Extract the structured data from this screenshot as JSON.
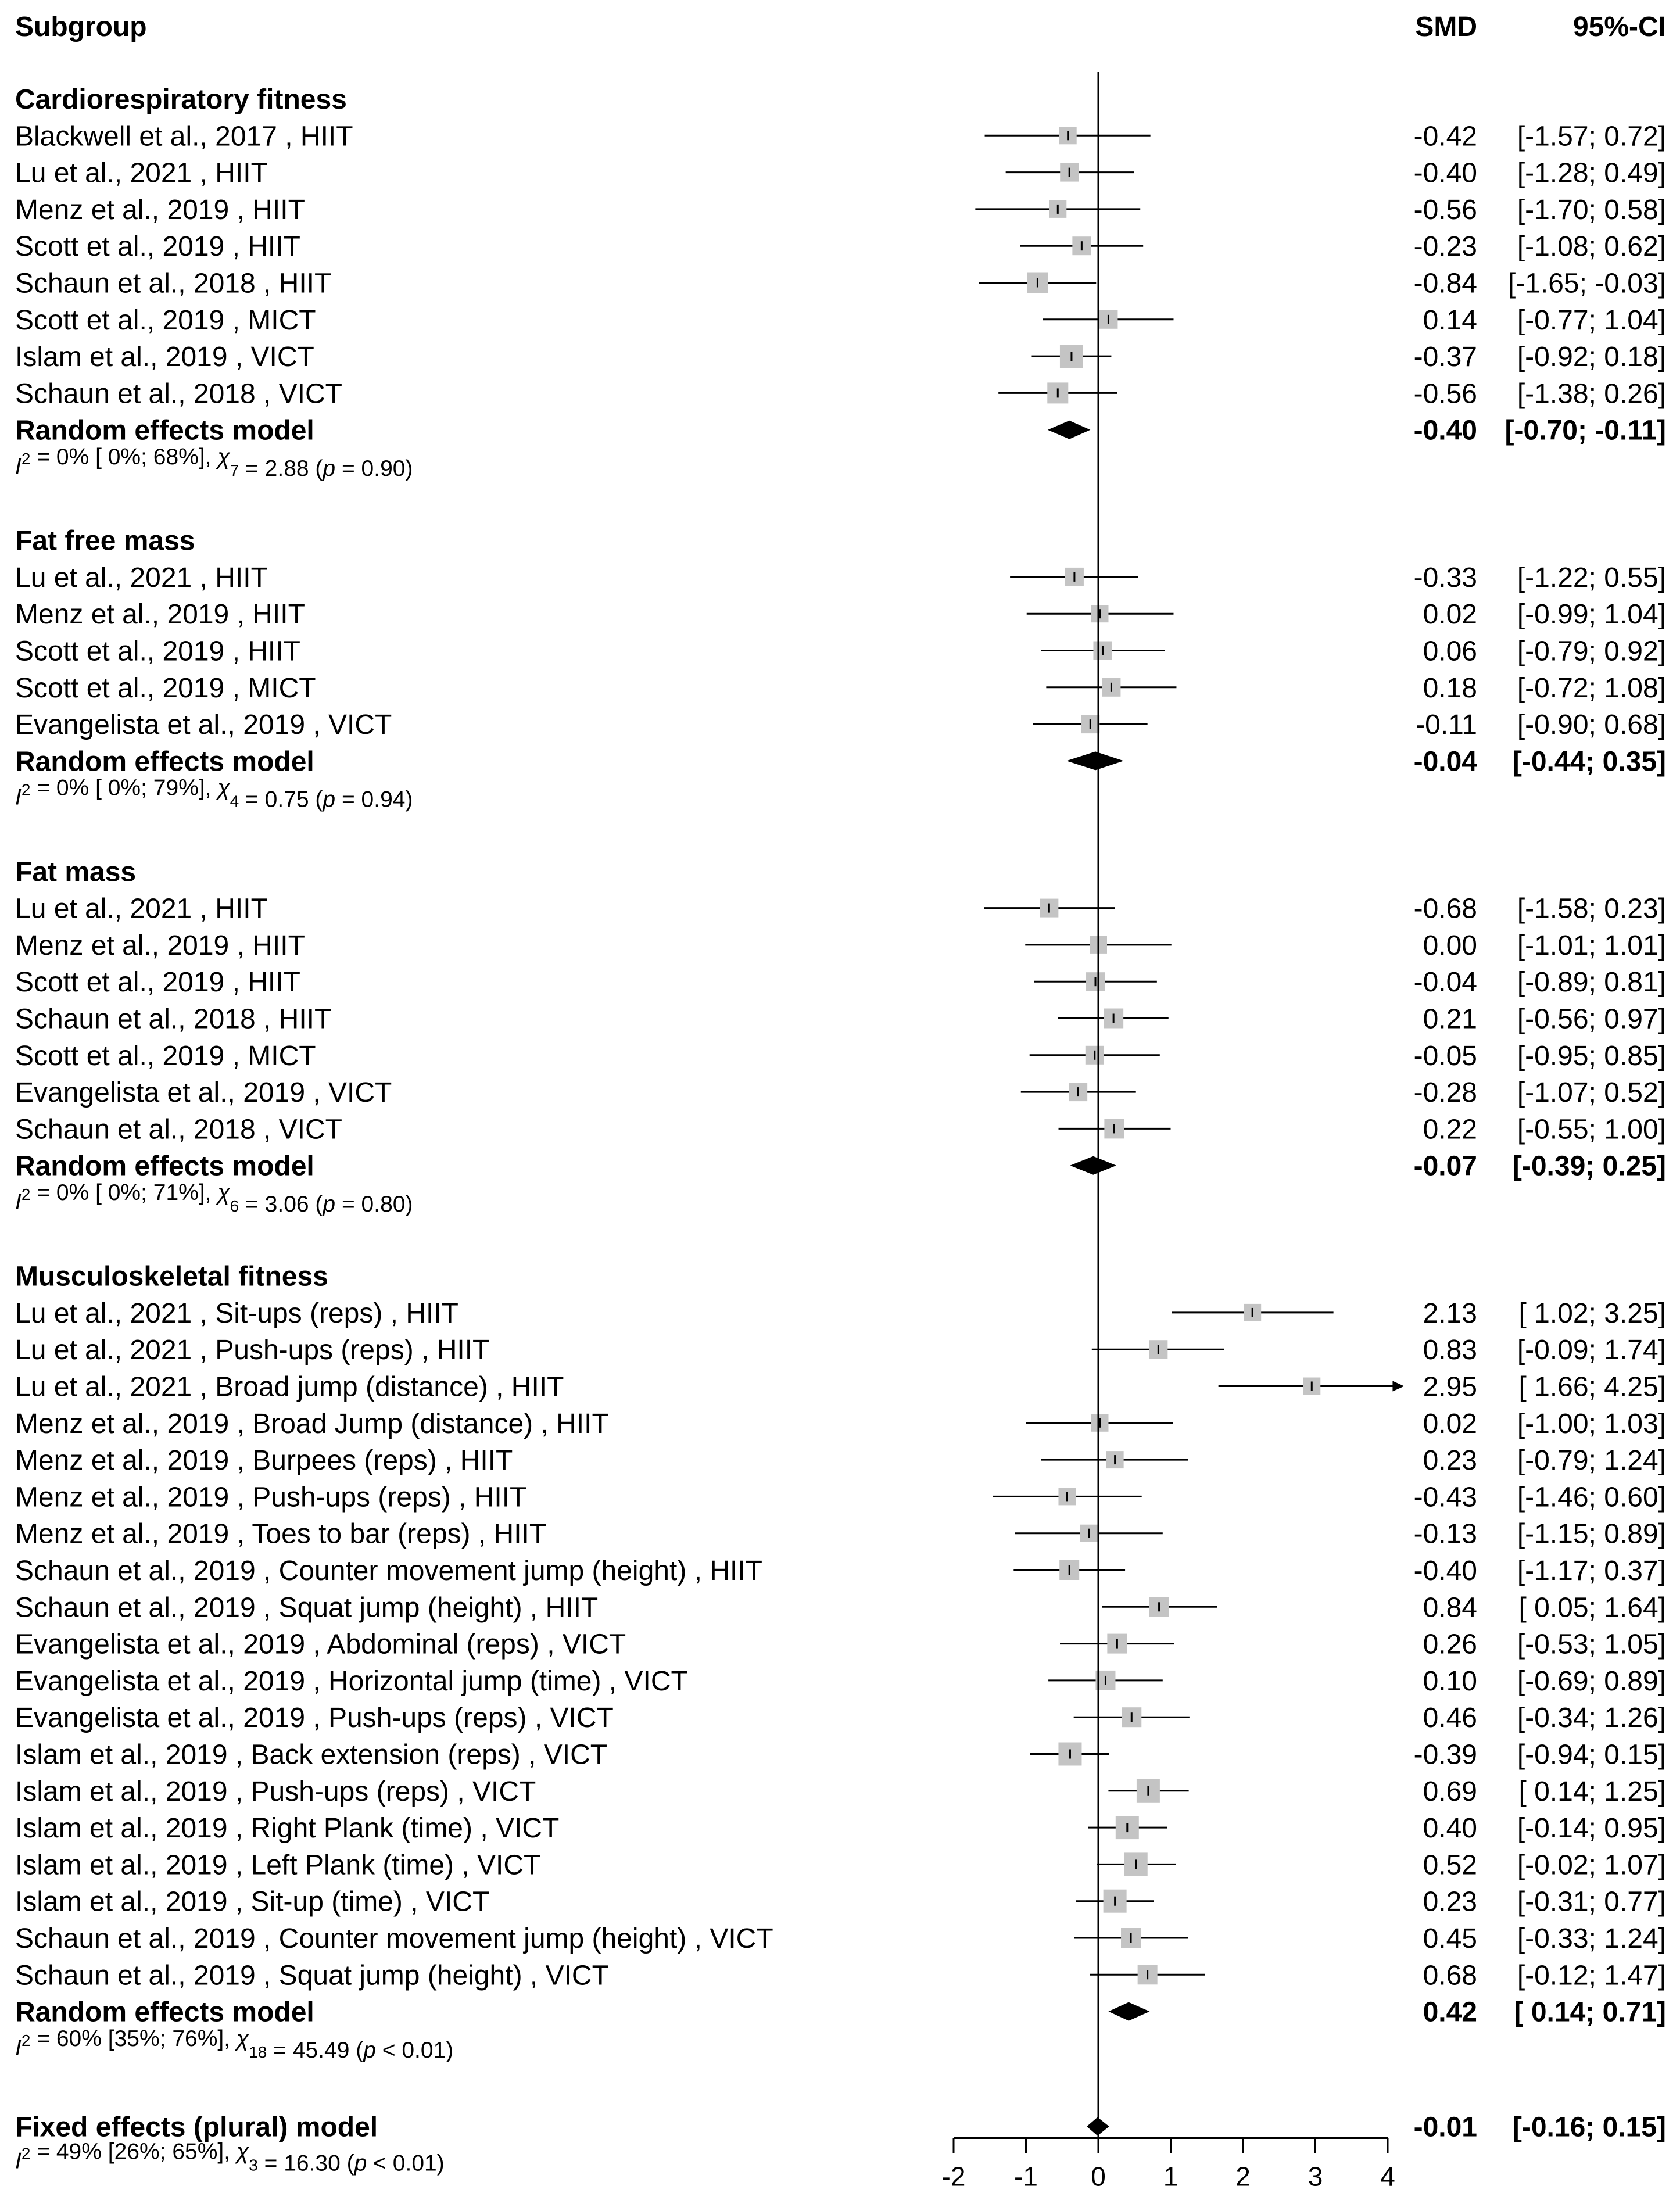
{
  "chart_data": {
    "type": "forest",
    "effect_measure": "SMD",
    "header": {
      "col1": "Subgroup",
      "col2": "SMD",
      "col3": "95%-CI"
    },
    "x_axis": {
      "range": [
        -2,
        4
      ],
      "ticks": [
        "-2",
        "-1",
        "0",
        "1",
        "2",
        "3",
        "4"
      ],
      "null_line": 0
    },
    "subgroups": [
      {
        "name": "Cardiorespiratory fitness",
        "studies": [
          {
            "label": "Blackwell et al., 2017  , HIIT",
            "smd": -0.42,
            "lo": -1.57,
            "hi": 0.72,
            "smd_text": "-0.42",
            "ci_text": "[-1.57;  0.72]",
            "weight": 0.75
          },
          {
            "label": "Lu et al., 2021  , HIIT",
            "smd": -0.4,
            "lo": -1.28,
            "hi": 0.49,
            "smd_text": "-0.40",
            "ci_text": "[-1.28;  0.49]",
            "weight": 0.8
          },
          {
            "label": "Menz et al., 2019  , HIIT",
            "smd": -0.56,
            "lo": -1.7,
            "hi": 0.58,
            "smd_text": "-0.56",
            "ci_text": "[-1.70;  0.58]",
            "weight": 0.75
          },
          {
            "label": "Scott et al., 2019  , HIIT",
            "smd": -0.23,
            "lo": -1.08,
            "hi": 0.62,
            "smd_text": "-0.23",
            "ci_text": "[-1.08;  0.62]",
            "weight": 0.8
          },
          {
            "label": "Schaun et al., 2018  , HIIT",
            "smd": -0.84,
            "lo": -1.65,
            "hi": -0.03,
            "smd_text": "-0.84",
            "ci_text": "[-1.65; -0.03]",
            "weight": 0.9
          },
          {
            "label": "Scott et al., 2019  , MICT",
            "smd": 0.14,
            "lo": -0.77,
            "hi": 1.04,
            "smd_text": "0.14",
            "ci_text": "[-0.77;  1.04]",
            "weight": 0.8
          },
          {
            "label": "Islam et al., 2019  , VICT",
            "smd": -0.37,
            "lo": -0.92,
            "hi": 0.18,
            "smd_text": "-0.37",
            "ci_text": "[-0.92;  0.18]",
            "weight": 1.0
          },
          {
            "label": "Schaun et al., 2018  , VICT",
            "smd": -0.56,
            "lo": -1.38,
            "hi": 0.26,
            "smd_text": "-0.56",
            "ci_text": "[-1.38;  0.26]",
            "weight": 0.9
          }
        ],
        "model": {
          "label": "Random effects model",
          "smd": -0.4,
          "lo": -0.7,
          "hi": -0.11,
          "smd_text": "-0.40",
          "ci_text": "[-0.70; -0.11]"
        },
        "heterogeneity": {
          "i2": "I",
          "rest": " = 0% [ 0%; 68%], ",
          "chi": "χ",
          "df": "7",
          "stat": " = 2.88 (",
          "p": "p",
          "pval": " = 0.90)"
        }
      },
      {
        "name": "Fat free mass",
        "studies": [
          {
            "label": "Lu et al., 2021  , HIIT",
            "smd": -0.33,
            "lo": -1.22,
            "hi": 0.55,
            "smd_text": "-0.33",
            "ci_text": "[-1.22;  0.55]",
            "weight": 0.8
          },
          {
            "label": "Menz et al., 2019  , HIIT",
            "smd": 0.02,
            "lo": -0.99,
            "hi": 1.04,
            "smd_text": "0.02",
            "ci_text": "[-0.99;  1.04]",
            "weight": 0.75
          },
          {
            "label": "Scott et al., 2019  , HIIT",
            "smd": 0.06,
            "lo": -0.79,
            "hi": 0.92,
            "smd_text": "0.06",
            "ci_text": "[-0.79;  0.92]",
            "weight": 0.8
          },
          {
            "label": "Scott et al., 2019  , MICT",
            "smd": 0.18,
            "lo": -0.72,
            "hi": 1.08,
            "smd_text": "0.18",
            "ci_text": "[-0.72;  1.08]",
            "weight": 0.8
          },
          {
            "label": "Evangelista et al., 2019  , VICT",
            "smd": -0.11,
            "lo": -0.9,
            "hi": 0.68,
            "smd_text": "-0.11",
            "ci_text": "[-0.90;  0.68]",
            "weight": 0.8
          }
        ],
        "model": {
          "label": "Random effects model",
          "smd": -0.04,
          "lo": -0.44,
          "hi": 0.35,
          "smd_text": "-0.04",
          "ci_text": "[-0.44;  0.35]"
        },
        "heterogeneity": {
          "i2": "I",
          "rest": " = 0% [ 0%; 79%], ",
          "chi": "χ",
          "df": "4",
          "stat": " = 0.75 (",
          "p": "p",
          "pval": " = 0.94)"
        }
      },
      {
        "name": "Fat mass",
        "studies": [
          {
            "label": "Lu et al., 2021  , HIIT",
            "smd": -0.68,
            "lo": -1.58,
            "hi": 0.23,
            "smd_text": "-0.68",
            "ci_text": "[-1.58;  0.23]",
            "weight": 0.8
          },
          {
            "label": "Menz et al., 2019  , HIIT",
            "smd": 0.0,
            "lo": -1.01,
            "hi": 1.01,
            "smd_text": "0.00",
            "ci_text": "[-1.01;  1.01]",
            "weight": 0.75
          },
          {
            "label": "Scott et al., 2019  , HIIT",
            "smd": -0.04,
            "lo": -0.89,
            "hi": 0.81,
            "smd_text": "-0.04",
            "ci_text": "[-0.89;  0.81]",
            "weight": 0.8
          },
          {
            "label": "Schaun et al., 2018  , HIIT",
            "smd": 0.21,
            "lo": -0.56,
            "hi": 0.97,
            "smd_text": "0.21",
            "ci_text": "[-0.56;  0.97]",
            "weight": 0.85
          },
          {
            "label": "Scott et al., 2019  , MICT",
            "smd": -0.05,
            "lo": -0.95,
            "hi": 0.85,
            "smd_text": "-0.05",
            "ci_text": "[-0.95;  0.85]",
            "weight": 0.8
          },
          {
            "label": "Evangelista et al., 2019  , VICT",
            "smd": -0.28,
            "lo": -1.07,
            "hi": 0.52,
            "smd_text": "-0.28",
            "ci_text": "[-1.07;  0.52]",
            "weight": 0.8
          },
          {
            "label": "Schaun et al., 2018  , VICT",
            "smd": 0.22,
            "lo": -0.55,
            "hi": 1.0,
            "smd_text": "0.22",
            "ci_text": "[-0.55;  1.00]",
            "weight": 0.85
          }
        ],
        "model": {
          "label": "Random effects model",
          "smd": -0.07,
          "lo": -0.39,
          "hi": 0.25,
          "smd_text": "-0.07",
          "ci_text": "[-0.39;  0.25]"
        },
        "heterogeneity": {
          "i2": "I",
          "rest": " = 0% [ 0%; 71%], ",
          "chi": "χ",
          "df": "6",
          "stat": " = 3.06 (",
          "p": "p",
          "pval": " = 0.80)"
        }
      },
      {
        "name": "Musculoskeletal fitness",
        "studies": [
          {
            "label": "Lu et al., 2021 , Sit-ups (reps) , HIIT",
            "smd": 2.13,
            "lo": 1.02,
            "hi": 3.25,
            "smd_text": "2.13",
            "ci_text": "[ 1.02;  3.25]",
            "weight": 0.75
          },
          {
            "label": "Lu et al., 2021 , Push-ups (reps) , HIIT",
            "smd": 0.83,
            "lo": -0.09,
            "hi": 1.74,
            "smd_text": "0.83",
            "ci_text": "[-0.09;  1.74]",
            "weight": 0.8
          },
          {
            "label": "Lu et al., 2021 , Broad jump (distance) , HIIT",
            "smd": 2.95,
            "lo": 1.66,
            "hi": 4.25,
            "smd_text": "2.95",
            "ci_text": "[ 1.66;  4.25]",
            "weight": 0.75,
            "arrow": true
          },
          {
            "label": "Menz et al., 2019 , Broad Jump (distance) , HIIT",
            "smd": 0.02,
            "lo": -1.0,
            "hi": 1.03,
            "smd_text": "0.02",
            "ci_text": "[-1.00;  1.03]",
            "weight": 0.75
          },
          {
            "label": "Menz et al., 2019 , Burpees (reps) , HIIT",
            "smd": 0.23,
            "lo": -0.79,
            "hi": 1.24,
            "smd_text": "0.23",
            "ci_text": "[-0.79;  1.24]",
            "weight": 0.75
          },
          {
            "label": "Menz et al., 2019 , Push-ups (reps) , HIIT",
            "smd": -0.43,
            "lo": -1.46,
            "hi": 0.6,
            "smd_text": "-0.43",
            "ci_text": "[-1.46;  0.60]",
            "weight": 0.75
          },
          {
            "label": "Menz et al., 2019 , Toes to bar (reps) , HIIT",
            "smd": -0.13,
            "lo": -1.15,
            "hi": 0.89,
            "smd_text": "-0.13",
            "ci_text": "[-1.15;  0.89]",
            "weight": 0.75
          },
          {
            "label": "Schaun et al., 2019 , Counter movement jump (height) , HIIT",
            "smd": -0.4,
            "lo": -1.17,
            "hi": 0.37,
            "smd_text": "-0.40",
            "ci_text": "[-1.17;  0.37]",
            "weight": 0.85
          },
          {
            "label": "Schaun et al., 2019 , Squat jump (height) , HIIT",
            "smd": 0.84,
            "lo": 0.05,
            "hi": 1.64,
            "smd_text": "0.84",
            "ci_text": "[ 0.05;  1.64]",
            "weight": 0.85
          },
          {
            "label": "Evangelista et al., 2019 , Abdominal (reps) , VICT",
            "smd": 0.26,
            "lo": -0.53,
            "hi": 1.05,
            "smd_text": "0.26",
            "ci_text": "[-0.53;  1.05]",
            "weight": 0.85
          },
          {
            "label": "Evangelista et al., 2019 , Horizontal jump (time) , VICT",
            "smd": 0.1,
            "lo": -0.69,
            "hi": 0.89,
            "smd_text": "0.10",
            "ci_text": "[-0.69;  0.89]",
            "weight": 0.85
          },
          {
            "label": "Evangelista et al., 2019 , Push-ups (reps) , VICT",
            "smd": 0.46,
            "lo": -0.34,
            "hi": 1.26,
            "smd_text": "0.46",
            "ci_text": "[-0.34;  1.26]",
            "weight": 0.85
          },
          {
            "label": "Islam et al., 2019 , Back extension (reps) , VICT",
            "smd": -0.39,
            "lo": -0.94,
            "hi": 0.15,
            "smd_text": "-0.39",
            "ci_text": "[-0.94;  0.15]",
            "weight": 1.0
          },
          {
            "label": "Islam et al., 2019 , Push-ups (reps) , VICT",
            "smd": 0.69,
            "lo": 0.14,
            "hi": 1.25,
            "smd_text": "0.69",
            "ci_text": "[ 0.14;  1.25]",
            "weight": 1.0
          },
          {
            "label": "Islam et al., 2019 , Right Plank (time) , VICT",
            "smd": 0.4,
            "lo": -0.14,
            "hi": 0.95,
            "smd_text": "0.40",
            "ci_text": "[-0.14;  0.95]",
            "weight": 1.0
          },
          {
            "label": "Islam et al., 2019 , Left Plank (time) , VICT",
            "smd": 0.52,
            "lo": -0.02,
            "hi": 1.07,
            "smd_text": "0.52",
            "ci_text": "[-0.02;  1.07]",
            "weight": 1.0
          },
          {
            "label": "Islam et al., 2019 , Sit-up (time) , VICT",
            "smd": 0.23,
            "lo": -0.31,
            "hi": 0.77,
            "smd_text": "0.23",
            "ci_text": "[-0.31;  0.77]",
            "weight": 1.0
          },
          {
            "label": "Schaun et al., 2019 , Counter movement jump (height) , VICT",
            "smd": 0.45,
            "lo": -0.33,
            "hi": 1.24,
            "smd_text": "0.45",
            "ci_text": "[-0.33;  1.24]",
            "weight": 0.85
          },
          {
            "label": "Schaun et al., 2019 , Squat jump (height) , VICT",
            "smd": 0.68,
            "lo": -0.12,
            "hi": 1.47,
            "smd_text": "0.68",
            "ci_text": "[-0.12;  1.47]",
            "weight": 0.85
          }
        ],
        "model": {
          "label": "Random effects model",
          "smd": 0.42,
          "lo": 0.14,
          "hi": 0.71,
          "smd_text": "0.42",
          "ci_text": "[ 0.14;  0.71]"
        },
        "heterogeneity": {
          "i2": "I",
          "rest": " = 60% [35%; 76%], ",
          "chi": "χ",
          "df": "18",
          "stat": " = 45.49 (",
          "p": "p",
          "pval": " < 0.01)"
        }
      }
    ],
    "overall": {
      "label": "Fixed effects (plural) model",
      "smd": -0.01,
      "lo": -0.16,
      "hi": 0.15,
      "smd_text": "-0.01",
      "ci_text": "[-0.16;  0.15]",
      "heterogeneity": {
        "i2": "I",
        "rest": " = 49% [26%; 65%], ",
        "chi": "χ",
        "df": "3",
        "stat": " = 16.30 (",
        "p": "p",
        "pval": " < 0.01)"
      }
    }
  }
}
